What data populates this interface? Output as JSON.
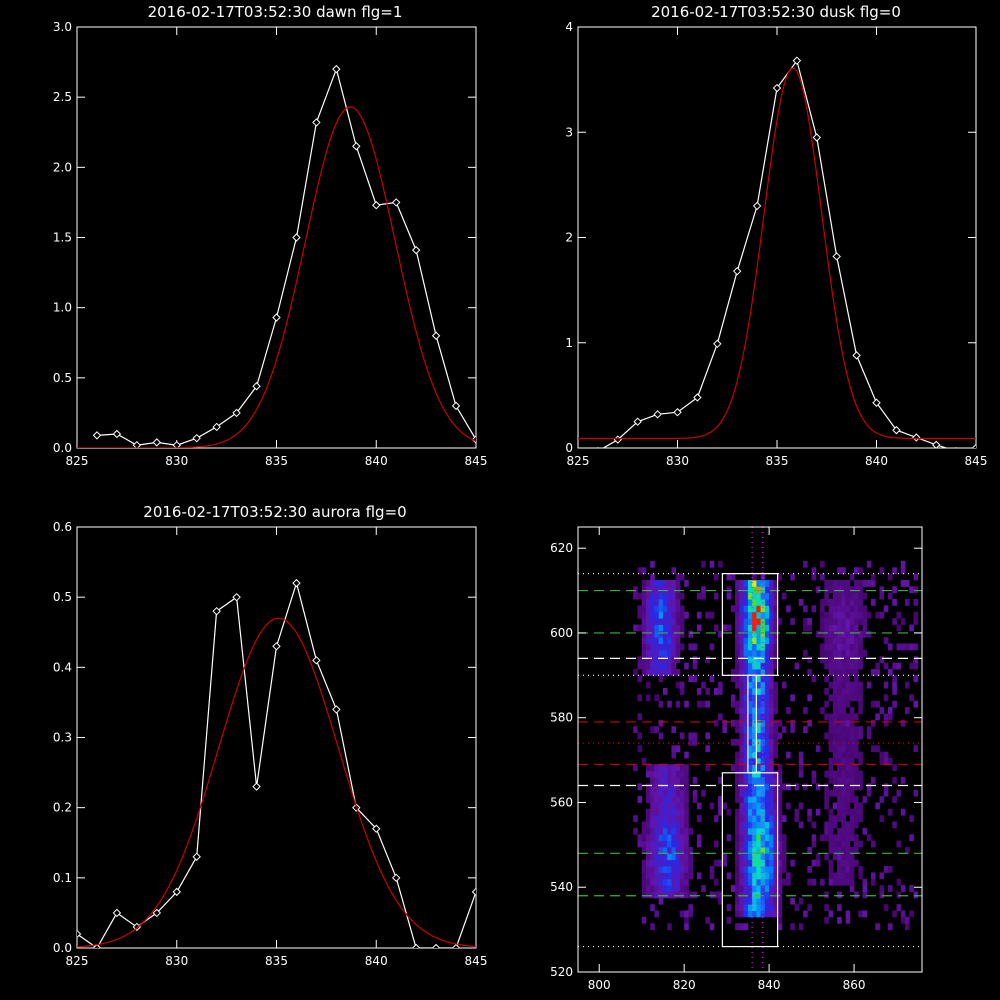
{
  "chart_data": [
    {
      "type": "line",
      "title": "2016-02-17T03:52:30 dawn flg=1",
      "xlim": [
        825,
        845
      ],
      "ylim": [
        0,
        3
      ],
      "xticks": [
        825,
        830,
        835,
        840,
        845
      ],
      "yticks": [
        0.0,
        0.5,
        1.0,
        1.5,
        2.0,
        2.5,
        3.0
      ],
      "ytick_labels": [
        "0.0",
        "0.5",
        "1.0",
        "1.5",
        "2.0",
        "2.5",
        "3.0"
      ],
      "series": [
        {
          "color": "#ffffff",
          "marker": "diamond",
          "x": [
            826,
            827,
            828,
            829,
            830,
            831,
            832,
            833,
            834,
            835,
            836,
            837,
            838,
            839,
            840,
            841,
            842,
            843,
            844,
            845
          ],
          "values": [
            0.09,
            0.1,
            0.02,
            0.04,
            0.02,
            0.07,
            0.15,
            0.25,
            0.44,
            0.93,
            1.5,
            2.32,
            2.7,
            2.15,
            1.73,
            1.75,
            1.41,
            0.8,
            0.3,
            0.06
          ]
        },
        {
          "color": "#cc0000",
          "marker": "none",
          "fit": "gaussian",
          "amplitude": 2.43,
          "center": 838.7,
          "sigma": 2.25,
          "baseline": 0.0
        }
      ]
    },
    {
      "type": "line",
      "title": "2016-02-17T03:52:30 dusk flg=0",
      "xlim": [
        825,
        845
      ],
      "ylim": [
        0,
        4
      ],
      "xticks": [
        825,
        830,
        835,
        840,
        845
      ],
      "yticks": [
        0,
        1,
        2,
        3,
        4
      ],
      "ytick_labels": [
        "0",
        "1",
        "2",
        "3",
        "4"
      ],
      "series": [
        {
          "color": "#ffffff",
          "marker": "diamond",
          "x": [
            826,
            827,
            828,
            829,
            830,
            831,
            832,
            833,
            834,
            835,
            836,
            837,
            838,
            839,
            840,
            841,
            842,
            843,
            844,
            845
          ],
          "values": [
            -0.03,
            0.08,
            0.25,
            0.32,
            0.34,
            0.48,
            0.99,
            1.68,
            2.3,
            3.42,
            3.68,
            2.95,
            1.82,
            0.88,
            0.43,
            0.17,
            0.1,
            0.03,
            -0.03,
            0.0
          ]
        },
        {
          "color": "#cc0000",
          "marker": "none",
          "fit": "gaussian",
          "amplitude": 3.52,
          "center": 835.8,
          "sigma": 1.45,
          "baseline": 0.09
        }
      ]
    },
    {
      "type": "line",
      "title": "2016-02-17T03:52:30 aurora flg=0",
      "xlim": [
        825,
        845
      ],
      "ylim": [
        0,
        0.6
      ],
      "xticks": [
        825,
        830,
        835,
        840,
        845
      ],
      "yticks": [
        0.0,
        0.1,
        0.2,
        0.3,
        0.4,
        0.5,
        0.6
      ],
      "ytick_labels": [
        "0.0",
        "0.1",
        "0.2",
        "0.3",
        "0.4",
        "0.5",
        "0.6"
      ],
      "series": [
        {
          "color": "#ffffff",
          "marker": "diamond",
          "x": [
            825,
            826,
            827,
            828,
            829,
            830,
            831,
            832,
            833,
            834,
            835,
            836,
            837,
            838,
            839,
            840,
            841,
            842,
            843,
            844,
            845
          ],
          "values": [
            0.02,
            0.0,
            0.05,
            0.03,
            0.05,
            0.08,
            0.13,
            0.48,
            0.5,
            0.23,
            0.43,
            0.52,
            0.41,
            0.34,
            0.2,
            0.17,
            0.1,
            0.0,
            0.0,
            0.0,
            0.08
          ]
        },
        {
          "color": "#cc0000",
          "marker": "none",
          "fit": "gaussian",
          "amplitude": 0.47,
          "center": 835.1,
          "sigma": 3.0,
          "baseline": 0.0
        }
      ]
    },
    {
      "type": "heatmap",
      "title": "",
      "xlim": [
        795,
        876
      ],
      "ylim": [
        520,
        625
      ],
      "xticks": [
        800,
        820,
        840,
        860
      ],
      "yticks": [
        520,
        540,
        560,
        580,
        600,
        620
      ],
      "colormap": "rainbow",
      "intensity_bands": [
        {
          "x_center": 836.5,
          "x_width": 2.2,
          "y_range": [
            532,
            612
          ],
          "peak": 1.0,
          "peak_y": 604
        },
        {
          "x_center": 837.5,
          "x_width": 2.5,
          "y_range": [
            532,
            566
          ],
          "peak": 0.7,
          "peak_y": 548
        },
        {
          "x_center": 814.0,
          "x_width": 2.5,
          "y_range": [
            590,
            612
          ],
          "peak": 0.45,
          "peak_y": 602
        },
        {
          "x_center": 815.5,
          "x_width": 3.0,
          "y_range": [
            537,
            568
          ],
          "peak": 0.4,
          "peak_y": 547
        },
        {
          "x_center": 857.0,
          "x_width": 4.0,
          "y_range": [
            540,
            612
          ],
          "peak": 0.15,
          "peak_y": 600
        }
      ],
      "boxes": [
        {
          "x": [
            829,
            842
          ],
          "y": [
            526,
            567
          ],
          "color": "#ffffff"
        },
        {
          "x": [
            829,
            842
          ],
          "y": [
            590,
            614
          ],
          "color": "#ffffff"
        },
        {
          "x": [
            835,
            837
          ],
          "y": [
            567,
            590
          ],
          "color": "#ffffff"
        }
      ],
      "hlines": [
        {
          "y": 610,
          "color": "#3cb043",
          "style": "dashed"
        },
        {
          "y": 600,
          "color": "#3cb043",
          "style": "dashed"
        },
        {
          "y": 548,
          "color": "#3cb043",
          "style": "dashed"
        },
        {
          "y": 538,
          "color": "#3cb043",
          "style": "dashed"
        },
        {
          "y": 594,
          "color": "#ffffff",
          "style": "dashed"
        },
        {
          "y": 564,
          "color": "#ffffff",
          "style": "dashed"
        },
        {
          "y": 614,
          "color": "#ffffff",
          "style": "dotted"
        },
        {
          "y": 590,
          "color": "#ffffff",
          "style": "dotted"
        },
        {
          "y": 526,
          "color": "#ffffff",
          "style": "dotted"
        },
        {
          "y": 579,
          "color": "#cc0000",
          "style": "dashed"
        },
        {
          "y": 569,
          "color": "#cc0000",
          "style": "dashed"
        },
        {
          "y": 574,
          "color": "#cc0000",
          "style": "dotted"
        }
      ],
      "vlines": [
        {
          "x": 836,
          "color": "#ff00ff",
          "style": "dotted"
        },
        {
          "x": 838.5,
          "color": "#ff00ff",
          "style": "dotted"
        }
      ]
    }
  ]
}
